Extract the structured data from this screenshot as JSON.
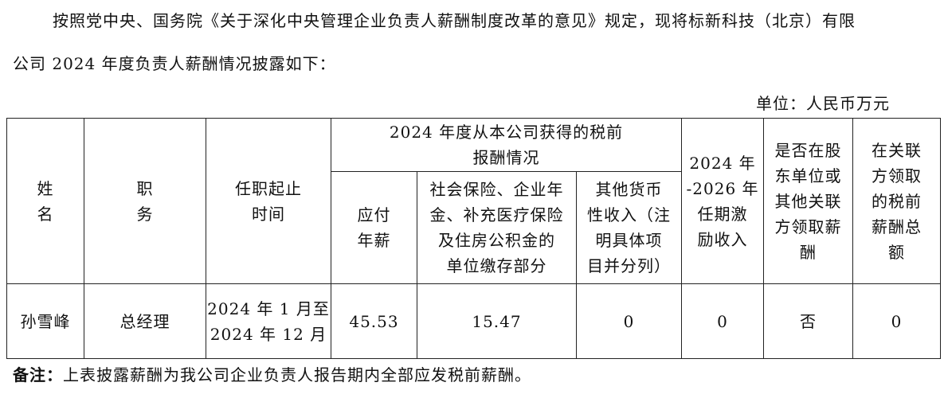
{
  "intro": {
    "line1": "按照党中央、国务院《关于深化中央管理企业负责人薪酬制度改革的意见》规定，现将标新科技（北京）有限",
    "line2": "公司 2024 年度负责人薪酬情况披露如下："
  },
  "unit": "单位：人民币万元",
  "table": {
    "headers": {
      "name": [
        "姓",
        "名"
      ],
      "position": [
        "职",
        "务"
      ],
      "term": [
        "任职起止",
        "时间"
      ],
      "group": [
        "2024 年度从本公司获得的税前",
        "报酬情况"
      ],
      "salary": [
        "应付",
        "年薪"
      ],
      "social": [
        "社会保险、企业年",
        "金、补充医疗保险",
        "及住房公积金的",
        "单位缴存部分"
      ],
      "other": [
        "其他货币",
        "性收入（注",
        "明具体项",
        "目并分列）"
      ],
      "incentive": [
        "2024 年",
        "-2026 年",
        "任期激",
        "励收入"
      ],
      "related": [
        "是否在股",
        "东单位或",
        "其他关联",
        "方领取薪",
        "酬"
      ],
      "related_total": [
        "在关联",
        "方领取",
        "的税前",
        "薪酬总",
        "额"
      ]
    },
    "rows": [
      {
        "name": "孙雪峰",
        "position": "总经理",
        "term": [
          "2024 年 1 月至",
          "2024 年 12 月"
        ],
        "salary": "45.53",
        "social": "15.47",
        "other": "0",
        "incentive": "0",
        "related": "否",
        "related_total": "0"
      }
    ]
  },
  "note": {
    "label": "备注：",
    "text": "上表披露薪酬为我公司企业负责人报告期内全部应发税前薪酬。"
  }
}
